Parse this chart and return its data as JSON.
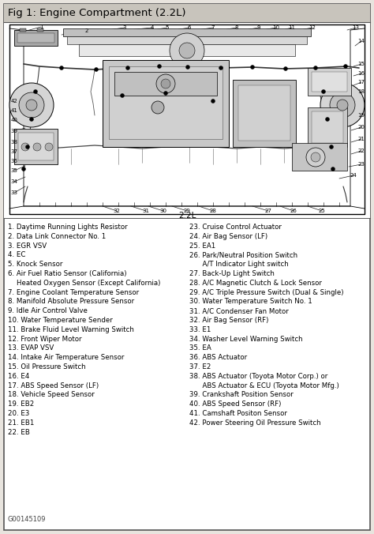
{
  "title": "Fig 1: Engine Compartment (2.2L)",
  "title_bg": "#c8c4bc",
  "bg_color": "#e8e4de",
  "border_color": "#666666",
  "diagram_label": "2.2L",
  "legend_left": [
    "1. Daytime Running Lights Resistor",
    "2. Data Link Connector No. 1",
    "3. EGR VSV",
    "4. EC",
    "5. Knock Sensor",
    "6. Air Fuel Ratio Sensor (California)",
    "    Heated Oxygen Sensor (Except California)",
    "7. Engine Coolant Temperature Sensor",
    "8. Manifold Absolute Pressure Sensor",
    "9. Idle Air Control Valve",
    "10. Water Temperature Sender",
    "11. Brake Fluid Level Warning Switch",
    "12. Front Wiper Motor",
    "13. EVAP VSV",
    "14. Intake Air Temperature Sensor",
    "15. Oil Pressure Switch",
    "16. E4",
    "17. ABS Speed Sensor (LF)",
    "18. Vehicle Speed Sensor",
    "19. EB2",
    "20. E3",
    "21. EB1",
    "22. EB"
  ],
  "legend_right": [
    "23. Cruise Control Actuator",
    "24. Air Bag Sensor (LF)",
    "25. EA1",
    "26. Park/Neutral Position Switch",
    "      A/T Indicator Light switch",
    "27. Back-Up Light Switch",
    "28. A/C Magnetic Clutch & Lock Sensor",
    "29. A/C Triple Pressure Switch (Dual & Single)",
    "30. Water Temperature Switch No. 1",
    "31. A/C Condenser Fan Motor",
    "32. Air Bag Sensor (RF)",
    "33. E1",
    "34. Washer Level Warning Switch",
    "35. EA",
    "36. ABS Actuator",
    "37. E2",
    "38. ABS Actuator (Toyota Motor Corp.) or",
    "      ABS Actuator & ECU (Toyota Motor Mfg.)",
    "39. Crankshaft Position Sensor",
    "40. ABS Speed Sensor (RF)",
    "41. Camshaft Positon Sensor",
    "42. Power Steering Oil Pressure Switch"
  ],
  "part_number": "G00145109",
  "figsize": [
    4.74,
    6.76
  ],
  "dpi": 100
}
